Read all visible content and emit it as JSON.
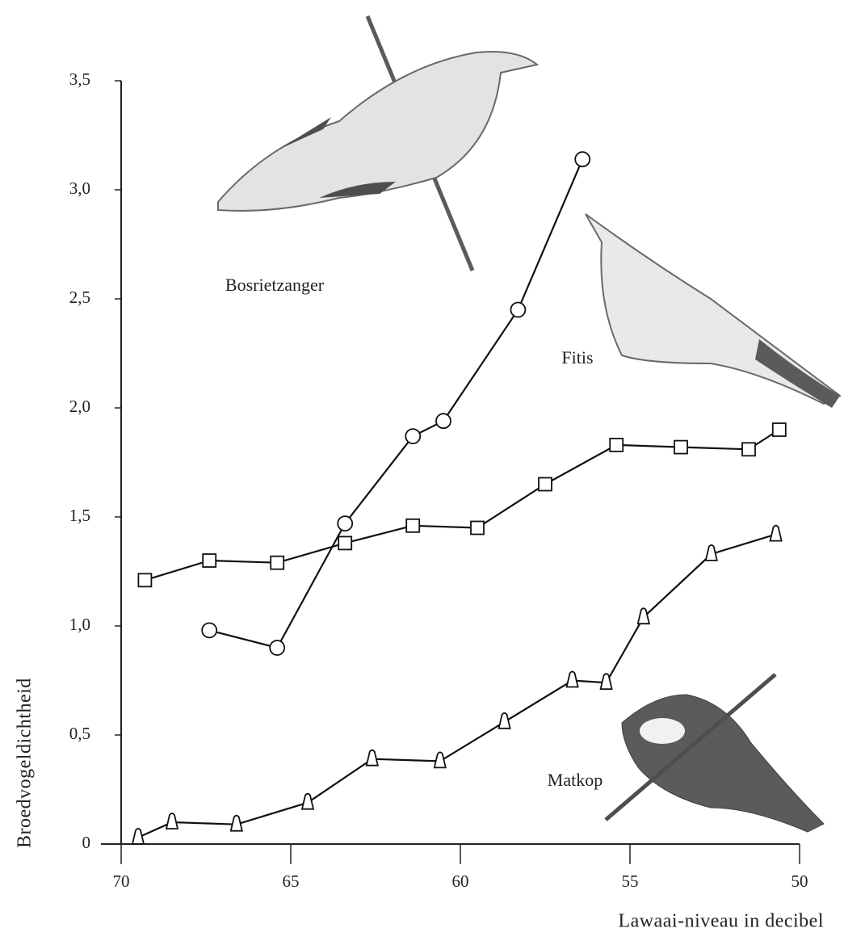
{
  "chart_data": {
    "type": "line",
    "x_label": "Lawaai-niveau in decibel",
    "y_label": "Broedvogeldichtheid",
    "xlim": [
      70,
      50
    ],
    "xticks": [
      70,
      65,
      60,
      55,
      50
    ],
    "ylim": [
      0,
      3.5
    ],
    "yticks": [
      0,
      {
        "value": 0.5,
        "label": "0,5"
      },
      {
        "value": 1,
        "label": "1,0"
      },
      {
        "value": 1.5,
        "label": "1,5"
      },
      {
        "value": 2,
        "label": "2,0"
      },
      {
        "value": 2.5,
        "label": "2,5"
      },
      {
        "value": 3,
        "label": "3,0"
      },
      {
        "value": 3.5,
        "label": "3,5"
      }
    ],
    "grid": false,
    "series": [
      {
        "name": "Bosrietzanger",
        "color": "#111111",
        "marker": "circle",
        "x": [
          67.4,
          65.4,
          63.4,
          61.4,
          60.5,
          58.3,
          56.4
        ],
        "values": [
          0.98,
          0.9,
          1.47,
          1.87,
          1.94,
          2.45,
          3.14
        ]
      },
      {
        "name": "Fitis",
        "color": "#111111",
        "marker": "square",
        "x": [
          69.3,
          67.4,
          65.4,
          63.4,
          61.4,
          59.5,
          57.5,
          55.4,
          53.5,
          51.5,
          50.6
        ],
        "values": [
          1.21,
          1.3,
          1.29,
          1.38,
          1.46,
          1.45,
          1.65,
          1.83,
          1.82,
          1.81,
          1.9
        ]
      },
      {
        "name": "Matkop",
        "color": "#111111",
        "marker": "triangle",
        "x": [
          69.5,
          68.5,
          66.6,
          64.5,
          62.6,
          60.6,
          58.7,
          56.7,
          55.7,
          54.6,
          52.6,
          50.7
        ],
        "values": [
          0.03,
          0.1,
          0.09,
          0.19,
          0.39,
          0.38,
          0.56,
          0.75,
          0.74,
          1.04,
          1.33,
          1.42
        ]
      }
    ]
  }
}
